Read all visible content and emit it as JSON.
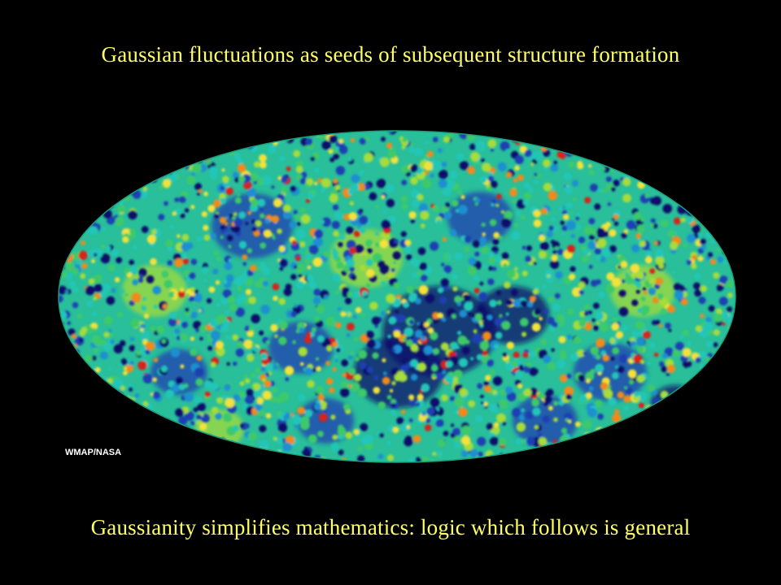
{
  "slide": {
    "title": "Gaussian fluctuations as seeds of subsequent structure formation",
    "caption": "Gaussianity simplifies mathematics:  logic which follows is general"
  },
  "map": {
    "credit": "WMAP/NASA",
    "palette": [
      "#0d0f6b",
      "#1f3fb2",
      "#1f8fd0",
      "#22c6b8",
      "#3cc96a",
      "#a6dc3a",
      "#f3e23a",
      "#f08a1e",
      "#d8231a"
    ]
  }
}
